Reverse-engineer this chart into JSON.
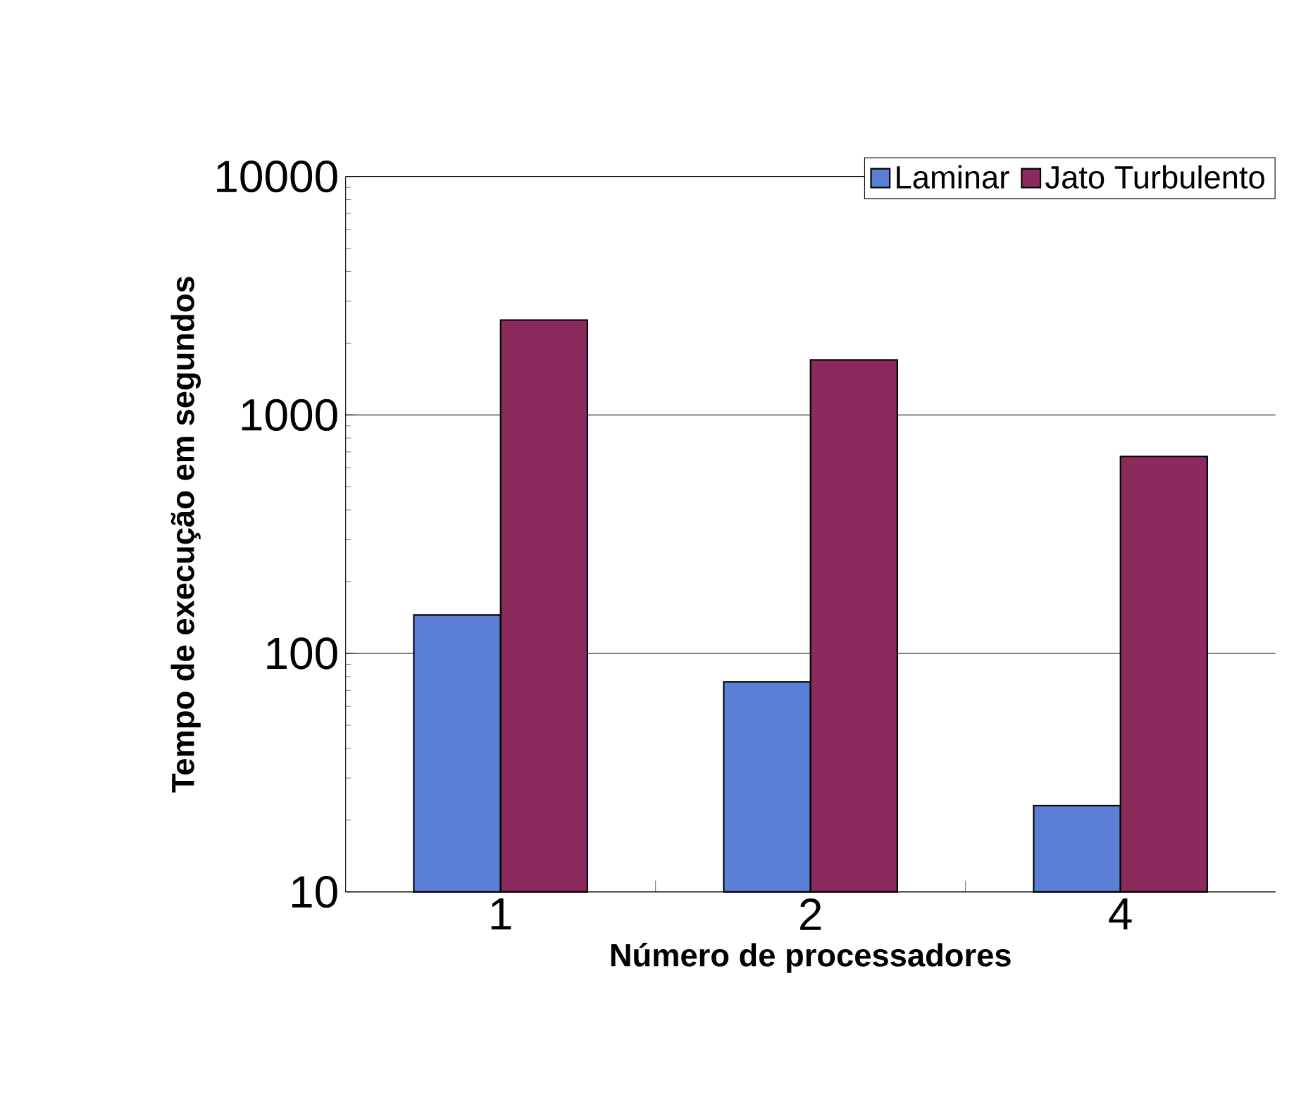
{
  "chart_data": {
    "type": "bar",
    "xlabel": "Número de processadores",
    "ylabel": "Tempo de execução em segundos",
    "categories": [
      "1",
      "2",
      "4"
    ],
    "series": [
      {
        "name": "Laminar",
        "color": "#5b7fd6",
        "values": [
          145,
          76,
          23
        ]
      },
      {
        "name": "Jato Turbulento",
        "color": "#8b2a5c",
        "values": [
          2500,
          1700,
          670
        ]
      }
    ],
    "log": true,
    "ylim": [
      10,
      10000
    ],
    "yticks": [
      10,
      100,
      1000,
      10000
    ],
    "grid": "y",
    "legend": "top right"
  }
}
